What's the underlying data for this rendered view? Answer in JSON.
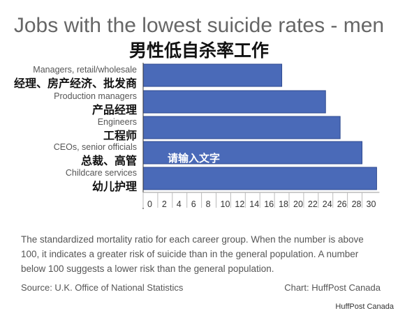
{
  "chart_data": {
    "type": "bar",
    "orientation": "horizontal",
    "title": "Jobs with the lowest suicide rates - men",
    "title_cn": "男性低自杀率工作",
    "categories": [
      {
        "label": "Managers, retail/wholesale",
        "label_cn": "经理、房产经济、批发商",
        "value": 19
      },
      {
        "label": "Production managers",
        "label_cn": "产品经理",
        "value": 25
      },
      {
        "label": "Engineers",
        "label_cn": "工程师",
        "value": 27
      },
      {
        "label": "CEOs, senior officials",
        "label_cn": "总裁、高管",
        "value": 30
      },
      {
        "label": "Childcare services",
        "label_cn": "幼儿护理",
        "value": 32
      }
    ],
    "xlim": [
      0,
      32
    ],
    "xticks": [
      0,
      2,
      4,
      6,
      8,
      10,
      12,
      14,
      16,
      18,
      20,
      22,
      24,
      26,
      28,
      30
    ],
    "overlay_text": "请输入文字",
    "grid": false,
    "bar_color": "#4a6ab8"
  },
  "footer": {
    "description": "The standardized mortality ratio for each career group. When the number is above 100, it indicates a greater risk of suicide than in the general population. A number below 100 suggests a lower risk than the general population.",
    "source": "Source: U.K. Office of National Statistics",
    "credit": "Chart: HuffPost Canada"
  },
  "watermark": "HuffPost Canada"
}
